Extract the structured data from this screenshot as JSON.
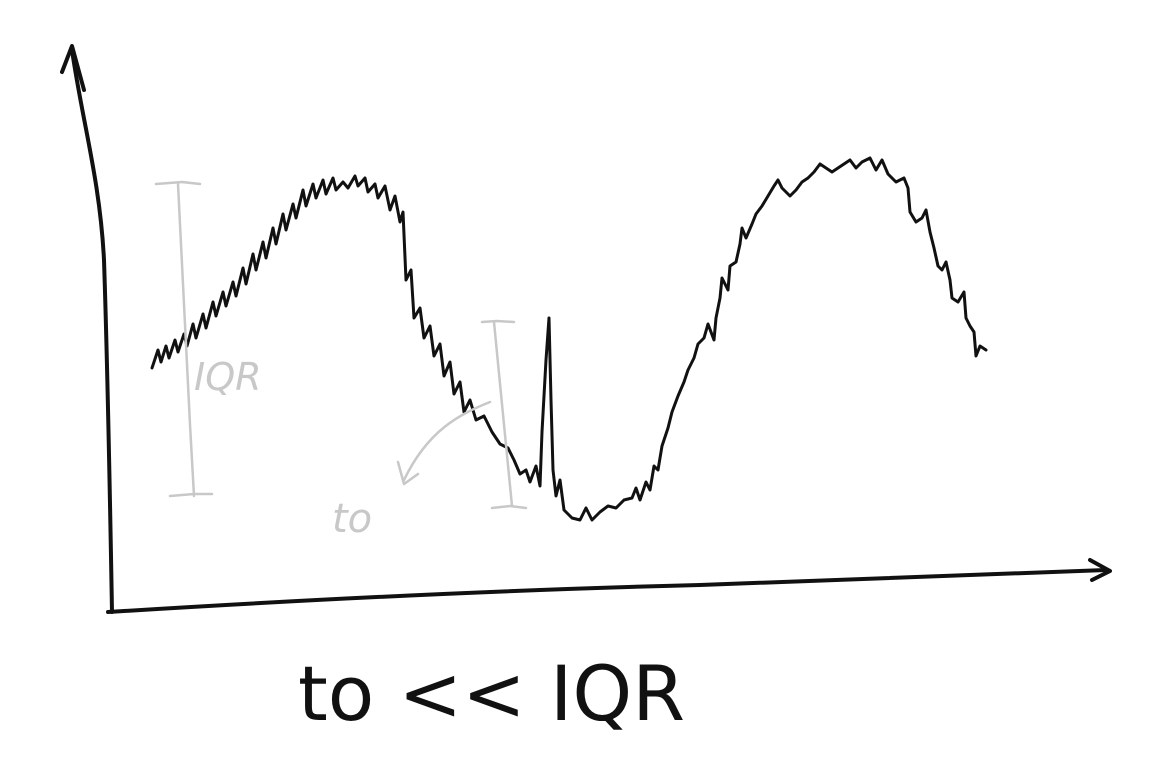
{
  "annotations": {
    "iqr_label": "IQR",
    "to_label": "to"
  },
  "caption": {
    "formula": "to << IQR"
  },
  "colors": {
    "ink": "#111111",
    "annotation_ink": "#c8c8c8",
    "background": "#ffffff"
  }
}
